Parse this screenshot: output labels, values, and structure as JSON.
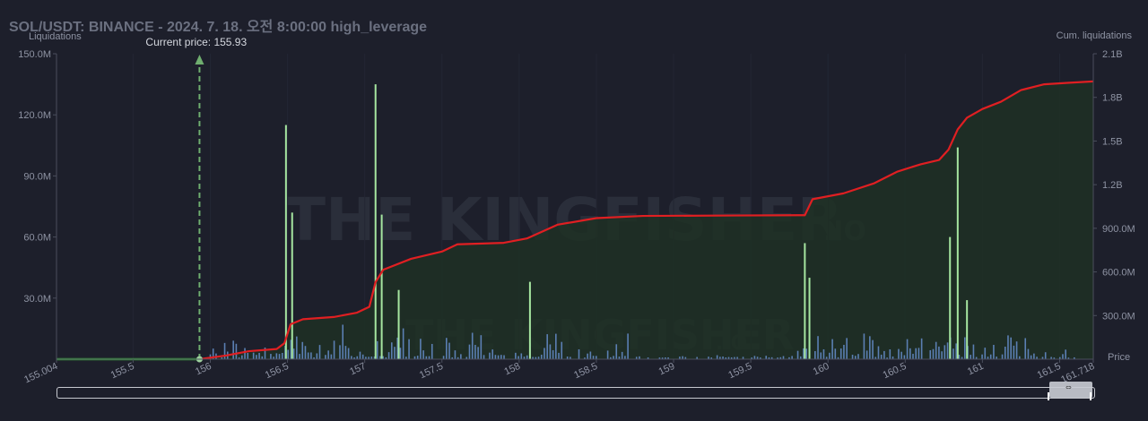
{
  "title": "SOL/USDT: BINANCE - 2024. 7. 18. 오전 8:00:00 high_leverage",
  "watermark": {
    "large": "THE KINGFISHER",
    "suffix": ".IO"
  },
  "colors": {
    "background": "#1d1f2b",
    "bar_blue": "#5b7fb3",
    "bar_green": "#a6e6a0",
    "cum_line": "#e01f22",
    "cum_fill": "#1f3024",
    "price_marker": "#6fae6f",
    "flat_line": "#3b9a3b"
  },
  "chart_data": {
    "type": "bar",
    "x_axis": {
      "ticks": [
        "155.004",
        "155.5",
        "156",
        "156.5",
        "157",
        "157.5",
        "158",
        "158.5",
        "159",
        "159.5",
        "160",
        "160.5",
        "161",
        "161.5",
        "161.718"
      ],
      "range": [
        155.004,
        161.718
      ]
    },
    "y_left": {
      "label": "Liquidations",
      "ticks": [
        "150.0M",
        "120.0M",
        "90.0M",
        "60.0M",
        "30.0M"
      ],
      "range": [
        0,
        150
      ]
    },
    "y_right": {
      "label": "Cum. liquidations",
      "ticks": [
        "2.1B",
        "1.8B",
        "1.5B",
        "1.2B",
        "900.0M",
        "600.0M",
        "300.0M"
      ],
      "range": [
        0,
        2100
      ],
      "extra_label": "Price"
    },
    "current_price": {
      "label": "Current price: 155.93",
      "value": 155.93
    },
    "spikes": [
      {
        "x": 156.49,
        "y": 115
      },
      {
        "x": 156.53,
        "y": 72
      },
      {
        "x": 157.07,
        "y": 135
      },
      {
        "x": 157.11,
        "y": 71
      },
      {
        "x": 157.22,
        "y": 34
      },
      {
        "x": 158.07,
        "y": 38
      },
      {
        "x": 159.85,
        "y": 57
      },
      {
        "x": 159.88,
        "y": 40
      },
      {
        "x": 160.79,
        "y": 60
      },
      {
        "x": 160.84,
        "y": 104
      },
      {
        "x": 160.9,
        "y": 29
      }
    ],
    "cumulative": [
      {
        "x": 155.004,
        "y": 0
      },
      {
        "x": 155.93,
        "y": 0
      },
      {
        "x": 156.1,
        "y": 25
      },
      {
        "x": 156.25,
        "y": 55
      },
      {
        "x": 156.43,
        "y": 70
      },
      {
        "x": 156.48,
        "y": 110
      },
      {
        "x": 156.52,
        "y": 240
      },
      {
        "x": 156.6,
        "y": 275
      },
      {
        "x": 156.8,
        "y": 290
      },
      {
        "x": 156.95,
        "y": 320
      },
      {
        "x": 157.03,
        "y": 360
      },
      {
        "x": 157.07,
        "y": 530
      },
      {
        "x": 157.12,
        "y": 615
      },
      {
        "x": 157.3,
        "y": 690
      },
      {
        "x": 157.5,
        "y": 740
      },
      {
        "x": 157.6,
        "y": 790
      },
      {
        "x": 157.9,
        "y": 800
      },
      {
        "x": 158.05,
        "y": 830
      },
      {
        "x": 158.25,
        "y": 925
      },
      {
        "x": 158.5,
        "y": 970
      },
      {
        "x": 158.8,
        "y": 985
      },
      {
        "x": 159.4,
        "y": 988
      },
      {
        "x": 159.85,
        "y": 990
      },
      {
        "x": 159.9,
        "y": 1100
      },
      {
        "x": 160.1,
        "y": 1140
      },
      {
        "x": 160.3,
        "y": 1210
      },
      {
        "x": 160.45,
        "y": 1290
      },
      {
        "x": 160.6,
        "y": 1340
      },
      {
        "x": 160.72,
        "y": 1370
      },
      {
        "x": 160.78,
        "y": 1440
      },
      {
        "x": 160.84,
        "y": 1580
      },
      {
        "x": 160.9,
        "y": 1660
      },
      {
        "x": 161.0,
        "y": 1720
      },
      {
        "x": 161.12,
        "y": 1770
      },
      {
        "x": 161.25,
        "y": 1850
      },
      {
        "x": 161.4,
        "y": 1890
      },
      {
        "x": 161.55,
        "y": 1900
      },
      {
        "x": 161.718,
        "y": 1910
      }
    ]
  }
}
